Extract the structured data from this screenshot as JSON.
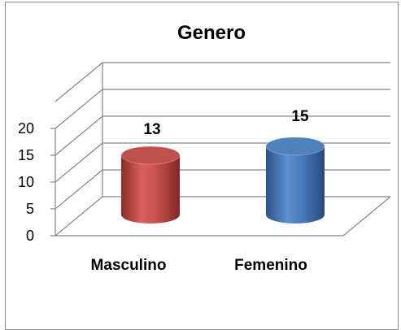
{
  "chart_data": {
    "type": "bar",
    "style": "3d-cylinder",
    "title": "Genero",
    "categories": [
      "Masculino",
      "Femenino"
    ],
    "values": [
      13,
      15
    ],
    "data_labels": [
      "13",
      "15"
    ],
    "series_colors": [
      "#c0504d",
      "#4f81bd"
    ],
    "ylim": [
      0,
      25
    ],
    "y_ticks": [
      "0",
      "5",
      "10",
      "15",
      "20"
    ],
    "grid": true,
    "legend": "none"
  }
}
